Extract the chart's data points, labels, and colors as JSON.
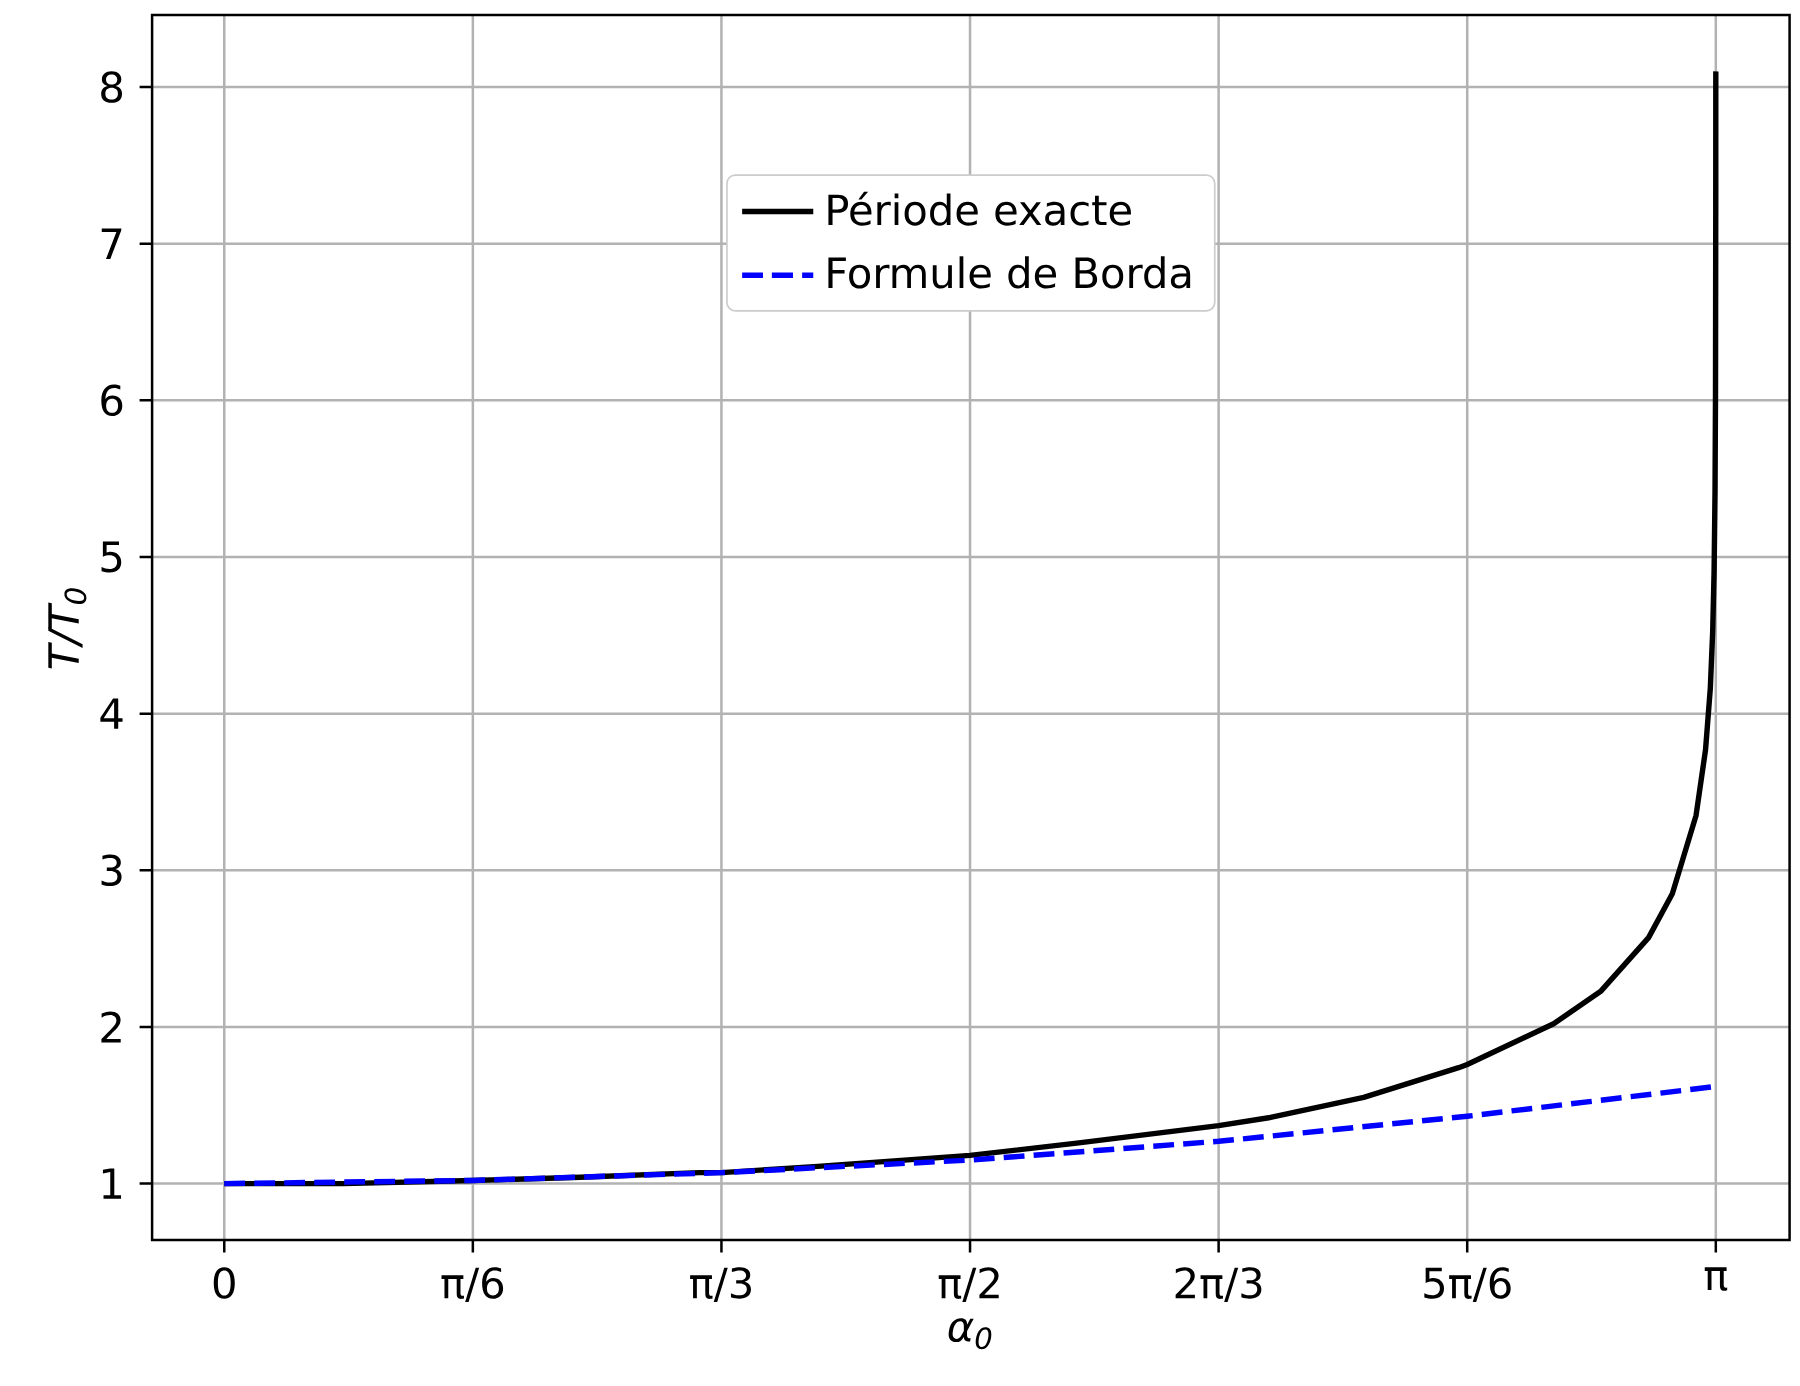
{
  "chart_data": {
    "type": "line",
    "xlabel": "α$_{0}$",
    "ylabel": "T/T$_{0}$",
    "xlim": [
      -0.152,
      3.297
    ],
    "ylim": [
      0.64,
      8.46
    ],
    "xticks": [
      {
        "value": 0,
        "label": "0"
      },
      {
        "value": 0.5236,
        "label": "π/6"
      },
      {
        "value": 1.0472,
        "label": "π/3"
      },
      {
        "value": 1.5708,
        "label": "π/2"
      },
      {
        "value": 2.0944,
        "label": "2π/3"
      },
      {
        "value": 2.618,
        "label": "5π/6"
      },
      {
        "value": 3.1416,
        "label": "π"
      }
    ],
    "yticks": [
      1,
      2,
      3,
      4,
      5,
      6,
      7,
      8
    ],
    "grid": true,
    "legend": "top",
    "series": [
      {
        "name": "Période exacte",
        "color": "#000000",
        "line_style": "solid",
        "x": [
          0,
          0.25,
          0.5236,
          0.75,
          1.0,
          1.0472,
          1.25,
          1.5708,
          1.8,
          2.0944,
          2.2,
          2.4,
          2.6,
          2.618,
          2.8,
          2.9,
          3.0,
          3.05,
          3.1,
          3.12,
          3.13,
          3.135,
          3.138,
          3.14,
          3.141,
          3.1415,
          3.1416
        ],
        "values": [
          1,
          1,
          1.02,
          1.04,
          1.07,
          1.07,
          1.11,
          1.18,
          1.26,
          1.37,
          1.42,
          1.55,
          1.74,
          1.76,
          2.02,
          2.23,
          2.57,
          2.85,
          3.35,
          3.77,
          4.16,
          4.52,
          4.91,
          5.42,
          6.05,
          7.24,
          8.1
        ]
      },
      {
        "name": "Formule de Borda",
        "color": "#0000ff",
        "line_style": "dashed",
        "x": [
          0,
          0.5236,
          1.0472,
          1.5708,
          2.0944,
          2.618,
          3.1416
        ],
        "values": [
          1,
          1.02,
          1.07,
          1.15,
          1.27,
          1.43,
          1.62
        ]
      }
    ]
  }
}
